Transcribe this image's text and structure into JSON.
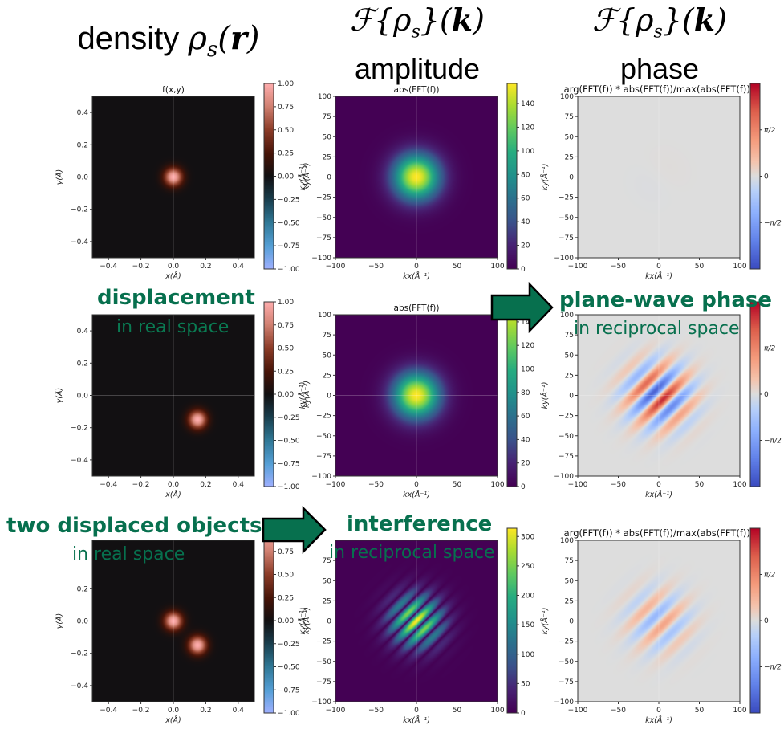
{
  "headers": [
    {
      "text": "density ",
      "math": "ρ",
      "sub": "s",
      "arg": "r"
    },
    {
      "math_line": "ℱ{ρs}(k)",
      "text": "amplitude"
    },
    {
      "math_line": "ℱ{ρs}(k)",
      "text": "phase"
    }
  ],
  "annotations": {
    "displacement": {
      "main": "displacement",
      "sub": "in real space"
    },
    "plane_wave": {
      "main": "plane-wave phase",
      "sub": "in reciprocal space"
    },
    "two_objects": {
      "main": "two displaced objects",
      "sub": "in real space"
    },
    "interference": {
      "main": "interference",
      "sub": "in reciprocal space"
    }
  },
  "colors": {
    "annotation_green": "#07704e",
    "arrow_fill": "#07704e",
    "real_bg": "#1b0c08",
    "phase_bg": "#dcdcdc",
    "viridis_low": "#440154"
  },
  "chart_data": [
    {
      "type": "heatmap",
      "row": 1,
      "col": 1,
      "title": "f(x,y)",
      "xlabel": "x(Å)",
      "ylabel": "y(Å)",
      "xlim": [
        -0.5,
        0.5
      ],
      "ylim": [
        -0.5,
        0.5
      ],
      "xticks": [
        "−0.4",
        "−0.2",
        "0.0",
        "0.2",
        "0.4"
      ],
      "yticks": [
        "0.4",
        "0.2",
        "0.0",
        "−0.2",
        "−0.4"
      ],
      "xtick_values": [
        -0.4,
        -0.2,
        0,
        0.2,
        0.4
      ],
      "ytick_values": [
        0.4,
        0.2,
        0,
        -0.2,
        -0.4
      ],
      "colormap": "red-blue diverging (berlin-like)",
      "clim": [
        -1,
        1
      ],
      "cbar_ticks": [
        "1.00",
        "0.75",
        "0.50",
        "0.25",
        "0.00",
        "−0.25",
        "−0.50",
        "−0.75",
        "−1.00"
      ],
      "cbar_tick_values": [
        1,
        0.75,
        0.5,
        0.25,
        0,
        -0.25,
        -0.5,
        -0.75,
        -1
      ],
      "cbar_label": "ky(Å⁻¹)",
      "gaussians": [
        {
          "x": 0.0,
          "y": 0.0,
          "amp": 1.0
        }
      ]
    },
    {
      "type": "heatmap",
      "row": 1,
      "col": 2,
      "title": "abs(FFT(f))",
      "xlabel": "kx(Å⁻¹)",
      "ylabel": "ky(Å⁻¹)",
      "xlim": [
        -100,
        100
      ],
      "ylim": [
        -100,
        100
      ],
      "xticks": [
        "−100",
        "−50",
        "0",
        "50",
        "100"
      ],
      "yticks": [
        "100",
        "75",
        "50",
        "25",
        "0",
        "−25",
        "−50",
        "−75",
        "−100"
      ],
      "xtick_values": [
        -100,
        -50,
        0,
        50,
        100
      ],
      "ytick_values": [
        100,
        75,
        50,
        25,
        0,
        -25,
        -50,
        -75,
        -100
      ],
      "colormap": "viridis",
      "clim": [
        0,
        157
      ],
      "cbar_ticks": [
        "140",
        "120",
        "100",
        "80",
        "60",
        "40",
        "20",
        "0"
      ],
      "cbar_tick_values": [
        140,
        120,
        100,
        80,
        60,
        40,
        20,
        0
      ],
      "pattern": "single gaussian"
    },
    {
      "type": "heatmap",
      "row": 1,
      "col": 3,
      "title": "arg(FFT(f)) * abs(FFT(f))/max(abs(FFT(f)))",
      "xlabel": "kx(Å⁻¹)",
      "ylabel": "ky(Å⁻¹)",
      "xlim": [
        -100,
        100
      ],
      "ylim": [
        -100,
        100
      ],
      "xticks": [
        "−100",
        "−50",
        "0",
        "50",
        "100"
      ],
      "yticks": [
        "100",
        "75",
        "50",
        "25",
        "0",
        "−25",
        "−50",
        "−75",
        "−100"
      ],
      "xtick_values": [
        -100,
        -50,
        0,
        50,
        100
      ],
      "ytick_values": [
        100,
        75,
        50,
        25,
        0,
        -25,
        -50,
        -75,
        -100
      ],
      "colormap": "coolwarm",
      "clim": [
        -3.1416,
        3.1416
      ],
      "cbar_ticks": [
        "π/2",
        "0",
        "−π/2"
      ],
      "cbar_tick_values": [
        1.5708,
        0,
        -1.5708
      ],
      "pattern": "flat"
    },
    {
      "type": "heatmap",
      "row": 2,
      "col": 1,
      "title": "",
      "xlabel": "x(Å)",
      "ylabel": "y(Å)",
      "xlim": [
        -0.5,
        0.5
      ],
      "ylim": [
        -0.5,
        0.5
      ],
      "xticks": [
        "−0.4",
        "−0.2",
        "0.0",
        "0.2",
        "0.4"
      ],
      "yticks": [
        "0.4",
        "0.2",
        "0.0",
        "−0.2",
        "−0.4"
      ],
      "xtick_values": [
        -0.4,
        -0.2,
        0,
        0.2,
        0.4
      ],
      "ytick_values": [
        0.4,
        0.2,
        0,
        -0.2,
        -0.4
      ],
      "colormap": "red-blue diverging (berlin-like)",
      "clim": [
        -1,
        1
      ],
      "cbar_ticks": [
        "1.00",
        "0.75",
        "0.50",
        "0.25",
        "0.00",
        "−0.25",
        "−0.50",
        "−0.75",
        "−1.00"
      ],
      "cbar_tick_values": [
        1,
        0.75,
        0.5,
        0.25,
        0,
        -0.25,
        -0.5,
        -0.75,
        -1
      ],
      "cbar_label": "ky(Å⁻¹)",
      "gaussians": [
        {
          "x": 0.15,
          "y": -0.15,
          "amp": 1.0
        }
      ]
    },
    {
      "type": "heatmap",
      "row": 2,
      "col": 2,
      "title": "abs(FFT(f))",
      "xlabel": "kx(Å⁻¹)",
      "ylabel": "ky(Å⁻¹)",
      "xlim": [
        -100,
        100
      ],
      "ylim": [
        -100,
        100
      ],
      "xticks": [
        "−100",
        "−50",
        "0",
        "50",
        "100"
      ],
      "yticks": [
        "100",
        "75",
        "50",
        "25",
        "0",
        "−25",
        "−50",
        "−75",
        "−100"
      ],
      "xtick_values": [
        -100,
        -50,
        0,
        50,
        100
      ],
      "ytick_values": [
        100,
        75,
        50,
        25,
        0,
        -25,
        -50,
        -75,
        -100
      ],
      "colormap": "viridis",
      "clim": [
        0,
        157
      ],
      "cbar_ticks": [
        "140",
        "120",
        "100",
        "80",
        "60",
        "40",
        "20",
        "0"
      ],
      "cbar_tick_values": [
        140,
        120,
        100,
        80,
        60,
        40,
        20,
        0
      ],
      "pattern": "single gaussian"
    },
    {
      "type": "heatmap",
      "row": 2,
      "col": 3,
      "title": "",
      "xlabel": "kx(Å⁻¹)",
      "ylabel": "ky(Å⁻¹)",
      "xlim": [
        -100,
        100
      ],
      "ylim": [
        -100,
        100
      ],
      "xticks": [
        "−100",
        "−50",
        "0",
        "50",
        "100"
      ],
      "yticks": [
        "100",
        "75",
        "50",
        "25",
        "0",
        "−25",
        "−50",
        "−75",
        "−100"
      ],
      "xtick_values": [
        -100,
        -50,
        0,
        50,
        100
      ],
      "ytick_values": [
        100,
        75,
        50,
        25,
        0,
        -25,
        -50,
        -75,
        -100
      ],
      "colormap": "coolwarm",
      "clim": [
        -3.1416,
        3.1416
      ],
      "cbar_ticks": [
        "π/2",
        "0",
        "−π/2"
      ],
      "cbar_tick_values": [
        1.5708,
        0,
        -1.5708
      ],
      "pattern": "plane wave stripes along diagonal, strong"
    },
    {
      "type": "heatmap",
      "row": 3,
      "col": 1,
      "title": "",
      "xlabel": "x(Å)",
      "ylabel": "y(Å)",
      "xlim": [
        -0.5,
        0.5
      ],
      "ylim": [
        -0.5,
        0.5
      ],
      "xticks": [
        "−0.4",
        "−0.2",
        "0.0",
        "0.2",
        "0.4"
      ],
      "yticks": [
        "0.2",
        "0.0",
        "−0.2",
        "−0.4"
      ],
      "xtick_values": [
        -0.4,
        -0.2,
        0,
        0.2,
        0.4
      ],
      "ytick_values": [
        0.2,
        0,
        -0.2,
        -0.4
      ],
      "colormap": "red-blue diverging (berlin-like)",
      "clim": [
        -1,
        1
      ],
      "cbar_ticks": [
        "0.75",
        "0.50",
        "0.25",
        "0.00",
        "−0.25",
        "−0.50",
        "−0.75",
        "−1.00"
      ],
      "cbar_tick_values": [
        0.75,
        0.5,
        0.25,
        0,
        -0.25,
        -0.5,
        -0.75,
        -1
      ],
      "cbar_label": "ky(Å⁻¹)",
      "gaussians": [
        {
          "x": 0.0,
          "y": 0.0,
          "amp": 1.0
        },
        {
          "x": 0.15,
          "y": -0.15,
          "amp": 1.0
        }
      ]
    },
    {
      "type": "heatmap",
      "row": 3,
      "col": 2,
      "title": "",
      "xlabel": "kx(Å⁻¹)",
      "ylabel": "ky(Å⁻¹)",
      "xlim": [
        -100,
        100
      ],
      "ylim": [
        -100,
        100
      ],
      "xticks": [
        "−100",
        "−50",
        "0",
        "50",
        "100"
      ],
      "yticks": [
        "75",
        "50",
        "25",
        "0",
        "−25",
        "−50",
        "−75",
        "−100"
      ],
      "xtick_values": [
        -100,
        -50,
        0,
        50,
        100
      ],
      "ytick_values": [
        75,
        50,
        25,
        0,
        -25,
        -50,
        -75,
        -100
      ],
      "colormap": "viridis",
      "clim": [
        0,
        314
      ],
      "cbar_ticks": [
        "300",
        "250",
        "200",
        "150",
        "100",
        "50",
        "0"
      ],
      "cbar_tick_values": [
        300,
        250,
        200,
        150,
        100,
        50,
        0
      ],
      "pattern": "gaussian modulated by diagonal fringes"
    },
    {
      "type": "heatmap",
      "row": 3,
      "col": 3,
      "title": "arg(FFT(f)) * abs(FFT(f))/max(abs(FFT(f)))",
      "xlabel": "kx(Å⁻¹)",
      "ylabel": "ky(Å⁻¹)",
      "xlim": [
        -100,
        100
      ],
      "ylim": [
        -100,
        100
      ],
      "xticks": [
        "−100",
        "−50",
        "0",
        "50",
        "100"
      ],
      "yticks": [
        "100",
        "75",
        "50",
        "25",
        "0",
        "−25",
        "−50",
        "−75",
        "−100"
      ],
      "xtick_values": [
        -100,
        -50,
        0,
        50,
        100
      ],
      "ytick_values": [
        100,
        75,
        50,
        25,
        0,
        -25,
        -50,
        -75,
        -100
      ],
      "colormap": "coolwarm",
      "clim": [
        -3.1416,
        3.1416
      ],
      "cbar_ticks": [
        "π/2",
        "0",
        "−π/2"
      ],
      "cbar_tick_values": [
        1.5708,
        0,
        -1.5708
      ],
      "pattern": "plane wave stripes along diagonal, weak"
    }
  ]
}
